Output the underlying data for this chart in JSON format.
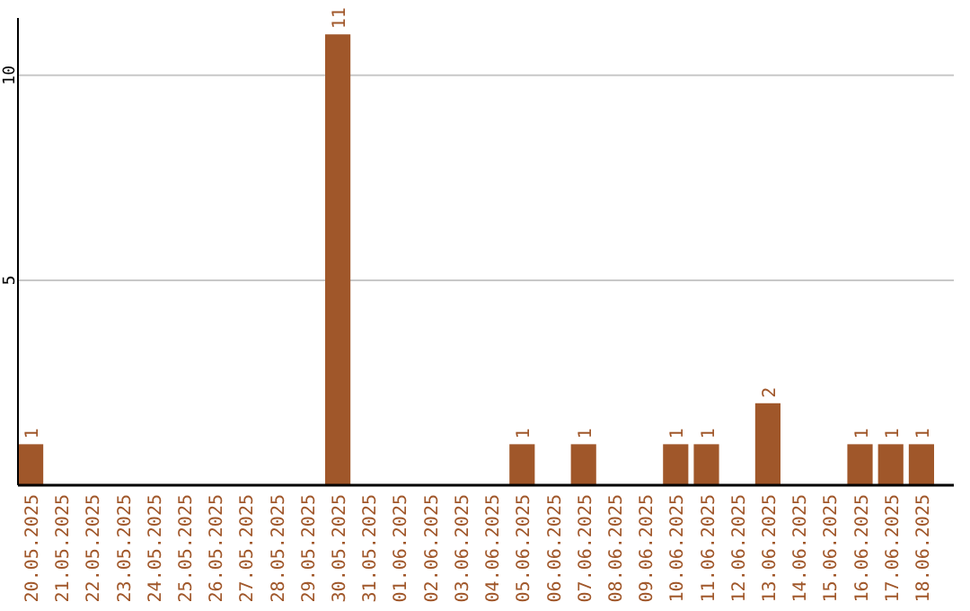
{
  "chart_data": {
    "type": "bar",
    "categories": [
      "20.05.2025",
      "21.05.2025",
      "22.05.2025",
      "23.05.2025",
      "24.05.2025",
      "25.05.2025",
      "26.05.2025",
      "27.05.2025",
      "28.05.2025",
      "29.05.2025",
      "30.05.2025",
      "31.05.2025",
      "01.06.2025",
      "02.06.2025",
      "03.06.2025",
      "04.06.2025",
      "05.06.2025",
      "06.06.2025",
      "07.06.2025",
      "08.06.2025",
      "09.06.2025",
      "10.06.2025",
      "11.06.2025",
      "12.06.2025",
      "13.06.2025",
      "14.06.2025",
      "15.06.2025",
      "16.06.2025",
      "17.06.2025",
      "18.06.2025"
    ],
    "values": [
      1,
      0,
      0,
      0,
      0,
      0,
      0,
      0,
      0,
      0,
      11,
      0,
      0,
      0,
      0,
      0,
      1,
      0,
      1,
      0,
      0,
      1,
      1,
      0,
      2,
      0,
      0,
      1,
      1,
      1
    ],
    "value_labels": [
      "1",
      null,
      null,
      null,
      null,
      null,
      null,
      null,
      null,
      null,
      "11",
      null,
      null,
      null,
      null,
      null,
      "1",
      null,
      "1",
      null,
      null,
      "1",
      "1",
      null,
      "2",
      null,
      null,
      "1",
      "1",
      "1"
    ],
    "color": "#a0572a",
    "ylim": [
      0,
      11.4
    ],
    "yticks": [
      5,
      10
    ],
    "grid": "y"
  }
}
